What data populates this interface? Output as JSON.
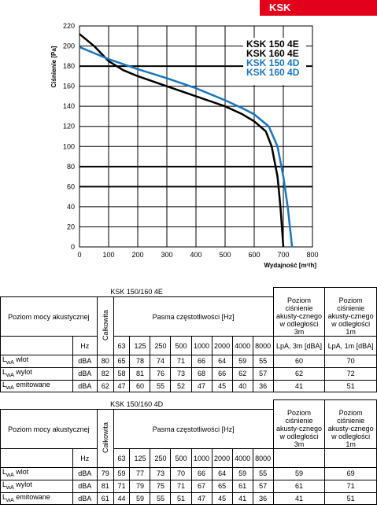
{
  "header": {
    "label": "KSK",
    "color": "#e3001b"
  },
  "chart_data": {
    "type": "line",
    "ylabel": "Ciśnienie [Pa]",
    "xlabel": "Wydajność [m³/h]",
    "xlim": [
      0,
      800
    ],
    "ylim": [
      0,
      220
    ],
    "xticks": [
      0,
      100,
      200,
      300,
      400,
      500,
      600,
      700,
      800
    ],
    "yticks": [
      0,
      20,
      40,
      60,
      80,
      100,
      120,
      140,
      160,
      180,
      200,
      220
    ],
    "grid": true,
    "legend_position": "top-right",
    "series": [
      {
        "name": "KSK 150 4E",
        "color": "#000000",
        "x": [
          0,
          50,
          100,
          150,
          200,
          300,
          400,
          500,
          560,
          600,
          640,
          660,
          680,
          690,
          700
        ],
        "y": [
          212,
          200,
          185,
          176,
          170,
          160,
          150,
          140,
          132,
          125,
          115,
          100,
          70,
          40,
          0
        ]
      },
      {
        "name": "KSK 160 4E",
        "color": "#000000",
        "x": [],
        "y": []
      },
      {
        "name": "KSK 150 4D",
        "color": "#1a75bb",
        "x": [
          0,
          50,
          100,
          150,
          200,
          300,
          400,
          500,
          560,
          600,
          650,
          680,
          700,
          715,
          730
        ],
        "y": [
          199,
          193,
          187,
          182,
          177,
          168,
          158,
          146,
          138,
          132,
          120,
          100,
          70,
          40,
          0
        ]
      },
      {
        "name": "KSK 160 4D",
        "color": "#1a75bb",
        "x": [],
        "y": []
      }
    ]
  },
  "table1": {
    "title": "KSK 150/160 4E",
    "level_label": "Poziom mocy akustycznej",
    "total_label": "Całkowita",
    "bands_label": "Pasma częstotliwości [Hz]",
    "lpa3_label": "Poziom ciśnienie akusty-cznego w odległości 3m",
    "lpa1_label": "Poziom ciśnienie akusty-cznego w odległości 1m",
    "hz_label": "Hz",
    "bands": [
      "63",
      "125",
      "250",
      "500",
      "1000",
      "2000",
      "4000",
      "8000"
    ],
    "lpa3_unit": "LpA, 3m [dBA]",
    "lpa1_unit": "LpA, 1m [dBA]",
    "rows": [
      {
        "label": "L",
        "sub": "wA",
        "name": " wlot",
        "unit": "dBA",
        "total": "80",
        "values": [
          "65",
          "78",
          "74",
          "71",
          "66",
          "64",
          "59",
          "55"
        ],
        "lpa3": "60",
        "lpa1": "70"
      },
      {
        "label": "L",
        "sub": "wA",
        "name": " wylot",
        "unit": "dBA",
        "total": "82",
        "values": [
          "58",
          "81",
          "76",
          "73",
          "68",
          "66",
          "62",
          "57"
        ],
        "lpa3": "62",
        "lpa1": "72"
      },
      {
        "label": "L",
        "sub": "wA",
        "name": " emitowane",
        "unit": "dBA",
        "total": "62",
        "values": [
          "47",
          "60",
          "55",
          "52",
          "47",
          "45",
          "40",
          "36"
        ],
        "lpa3": "41",
        "lpa1": "51"
      }
    ]
  },
  "table2": {
    "title": "KSK 150/160 4D",
    "level_label": "Poziom mocy akustycznej",
    "total_label": "Całkowita",
    "bands_label": "Pasma częstotliwości [Hz]",
    "lpa3_label": "Poziom ciśnienie akusty-cznego w odległości 3m",
    "lpa1_label": "Poziom ciśnienie akusty-cznego w odległości 1m",
    "hz_label": "Hz",
    "bands": [
      "63",
      "125",
      "250",
      "500",
      "1000",
      "2000",
      "4000",
      "8000"
    ],
    "rows": [
      {
        "label": "L",
        "sub": "wA",
        "name": " wlot",
        "unit": "dBA",
        "total": "79",
        "values": [
          "59",
          "77",
          "73",
          "70",
          "66",
          "64",
          "59",
          "55"
        ],
        "lpa3": "59",
        "lpa1": "69"
      },
      {
        "label": "L",
        "sub": "wA",
        "name": " wylot",
        "unit": "dBA",
        "total": "81",
        "values": [
          "71",
          "79",
          "75",
          "71",
          "67",
          "65",
          "61",
          "57"
        ],
        "lpa3": "61",
        "lpa1": "71"
      },
      {
        "label": "L",
        "sub": "wA",
        "name": " emitowane",
        "unit": "dBA",
        "total": "61",
        "values": [
          "44",
          "59",
          "55",
          "51",
          "47",
          "45",
          "41",
          "36"
        ],
        "lpa3": "41",
        "lpa1": "51"
      }
    ]
  }
}
